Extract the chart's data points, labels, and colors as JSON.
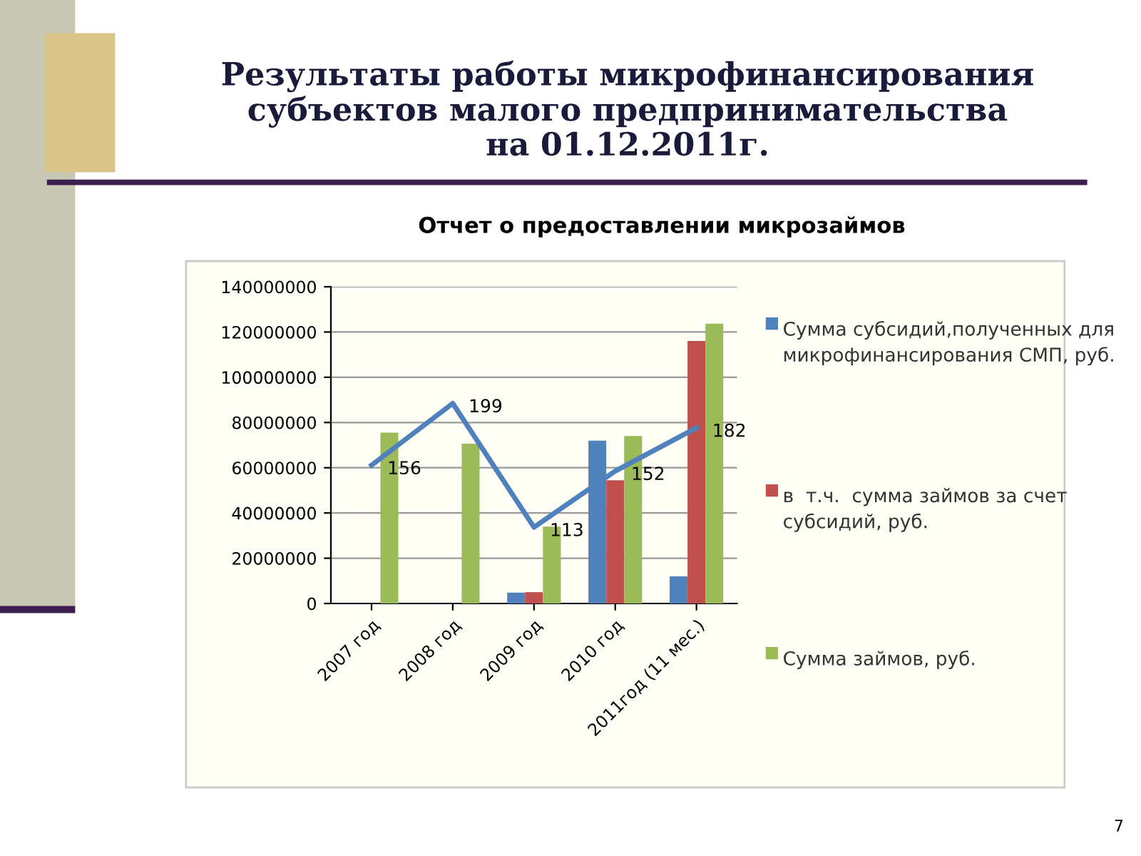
{
  "chart_data": {
    "type": "bar",
    "title": "Результаты работы микрофинансирования\nсубъектов малого предпринимательства\nна 01.12.2011г.",
    "subtitle": "Отчет о предоставлении микрозаймов",
    "categories": [
      "2007 год",
      "2008 год",
      "2009 год",
      "2010 год",
      "2011год (11 мес.)"
    ],
    "series": [
      {
        "name": "Сумма субсидий,полученных для микрофинансирования СМП, руб.",
        "color": "#4f81bd",
        "values": [
          null,
          null,
          4800000,
          72000000,
          12000000
        ]
      },
      {
        "name": "в  т.ч.  сумма займов за счет субсидий, руб.",
        "color": "#c0504d",
        "values": [
          null,
          null,
          5000000,
          54500000,
          116000000
        ]
      },
      {
        "name": "Сумма займов, руб.",
        "color": "#9bbb59",
        "values": [
          75500000,
          70600000,
          34000000,
          74000000,
          123700000
        ]
      },
      {
        "type": "line",
        "axis": "y2",
        "color": "#4f81bd",
        "values": [
          156,
          199,
          113,
          152,
          182
        ],
        "data_labels": true
      }
    ],
    "ylim": [
      0,
      140000000
    ],
    "yticks": [
      0,
      20000000,
      40000000,
      60000000,
      80000000,
      100000000,
      120000000,
      140000000
    ],
    "grid": "y",
    "legend": "right",
    "annotations": [
      "7"
    ]
  }
}
